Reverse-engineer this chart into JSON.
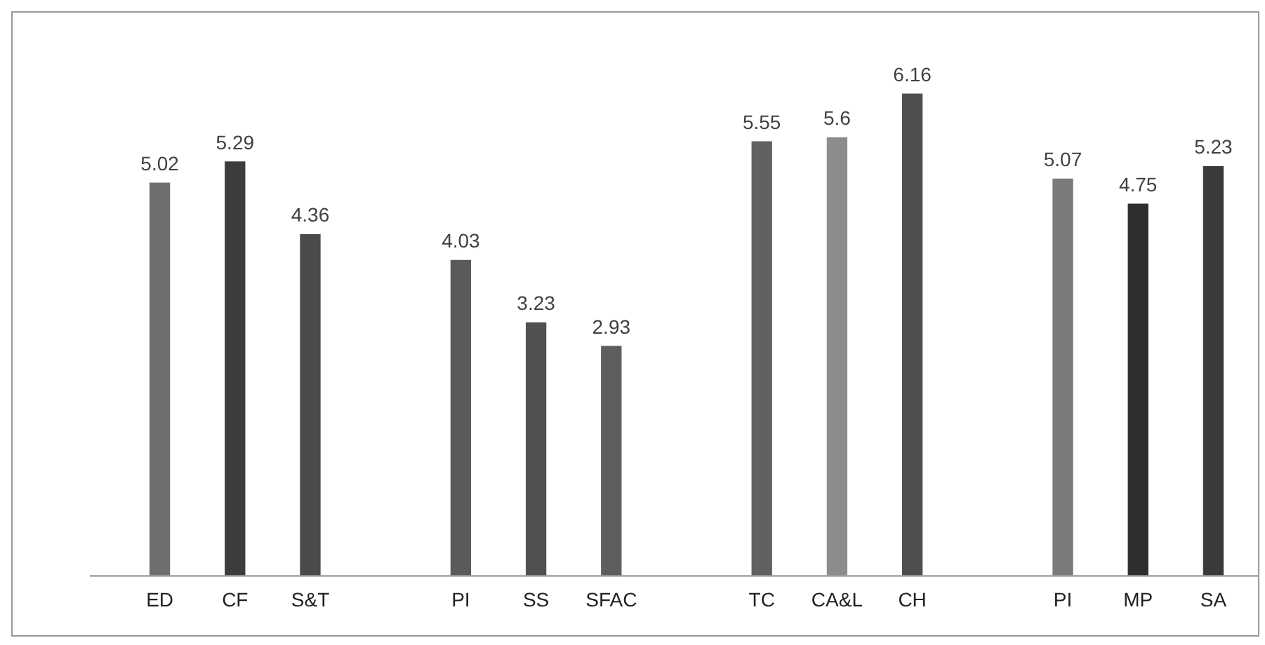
{
  "chart_data": {
    "type": "bar",
    "categories": [
      "ED",
      "CF",
      "S&T",
      null,
      "PI",
      "SS",
      "SFAC",
      null,
      "TC",
      "CA&L",
      "CH",
      null,
      "PI",
      "MP",
      "SA"
    ],
    "values": [
      5.02,
      5.29,
      4.36,
      null,
      4.03,
      3.23,
      2.93,
      null,
      5.55,
      5.6,
      6.16,
      null,
      5.07,
      4.75,
      5.23
    ],
    "colors": [
      "#6e6e6e",
      "#3c3c3c",
      "#4a4a4a",
      "#ffffff",
      "#5a5a5a",
      "#505050",
      "#5e5e5e",
      "#ffffff",
      "#606060",
      "#8c8c8c",
      "#4e4e4e",
      "#ffffff",
      "#7a7a7a",
      "#2e2e2e",
      "#3a3a3a"
    ],
    "data_labels": true,
    "grid": false,
    "legend": false
  }
}
